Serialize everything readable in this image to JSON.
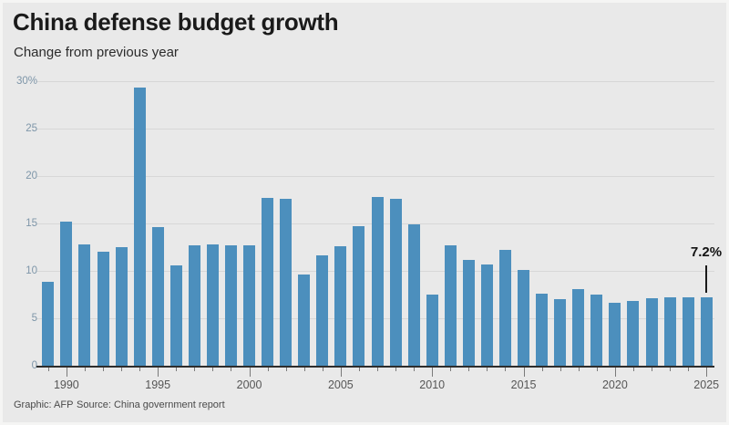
{
  "header": {
    "title": "China defense budget growth",
    "subtitle": "Change from previous year"
  },
  "footer": {
    "credit": "Graphic: AFP",
    "source": "Source: China government report"
  },
  "annotation": {
    "label": "7.2%",
    "year": 2025
  },
  "colors": {
    "background": "#e9e9e9",
    "border": "#f5f5f4",
    "bar": "#4c8fbd",
    "gridline": "#d7d7d7",
    "baseline": "#2d2d2d",
    "tick": "#7a7a7a",
    "y_label": "#7e96a9",
    "x_label": "#565656",
    "title": "#1a1a1a",
    "subtitle": "#2b2b2b",
    "footer_text": "#4a4a4a",
    "annotation": "#121212"
  },
  "chart_data": {
    "type": "bar",
    "title": "China defense budget growth",
    "subtitle": "Change from previous year",
    "xlabel": "",
    "ylabel": "Change from previous year (%)",
    "ylim": [
      0,
      30
    ],
    "grid": true,
    "legend": false,
    "y_ticks": [
      0,
      5,
      10,
      15,
      20,
      25,
      30
    ],
    "y_tick_labels": [
      "0",
      "5",
      "10",
      "15",
      "20",
      "25",
      "30%"
    ],
    "x_tick_labels": [
      "1990",
      "1995",
      "2000",
      "2005",
      "2010",
      "2015",
      "2020",
      "2025"
    ],
    "categories": [
      1989,
      1990,
      1991,
      1992,
      1993,
      1994,
      1995,
      1996,
      1997,
      1998,
      1999,
      2000,
      2001,
      2002,
      2003,
      2004,
      2005,
      2006,
      2007,
      2008,
      2009,
      2010,
      2011,
      2012,
      2013,
      2014,
      2015,
      2016,
      2017,
      2018,
      2019,
      2020,
      2021,
      2022,
      2023,
      2024,
      2025
    ],
    "values": [
      8.8,
      15.2,
      12.8,
      12.0,
      12.5,
      29.3,
      14.6,
      10.6,
      12.7,
      12.8,
      12.7,
      12.7,
      17.7,
      17.6,
      9.6,
      11.6,
      12.6,
      14.7,
      17.8,
      17.6,
      14.9,
      7.5,
      12.7,
      11.2,
      10.7,
      12.2,
      10.1,
      7.6,
      7.0,
      8.1,
      7.5,
      6.6,
      6.8,
      7.1,
      7.2,
      7.2,
      7.2
    ]
  }
}
